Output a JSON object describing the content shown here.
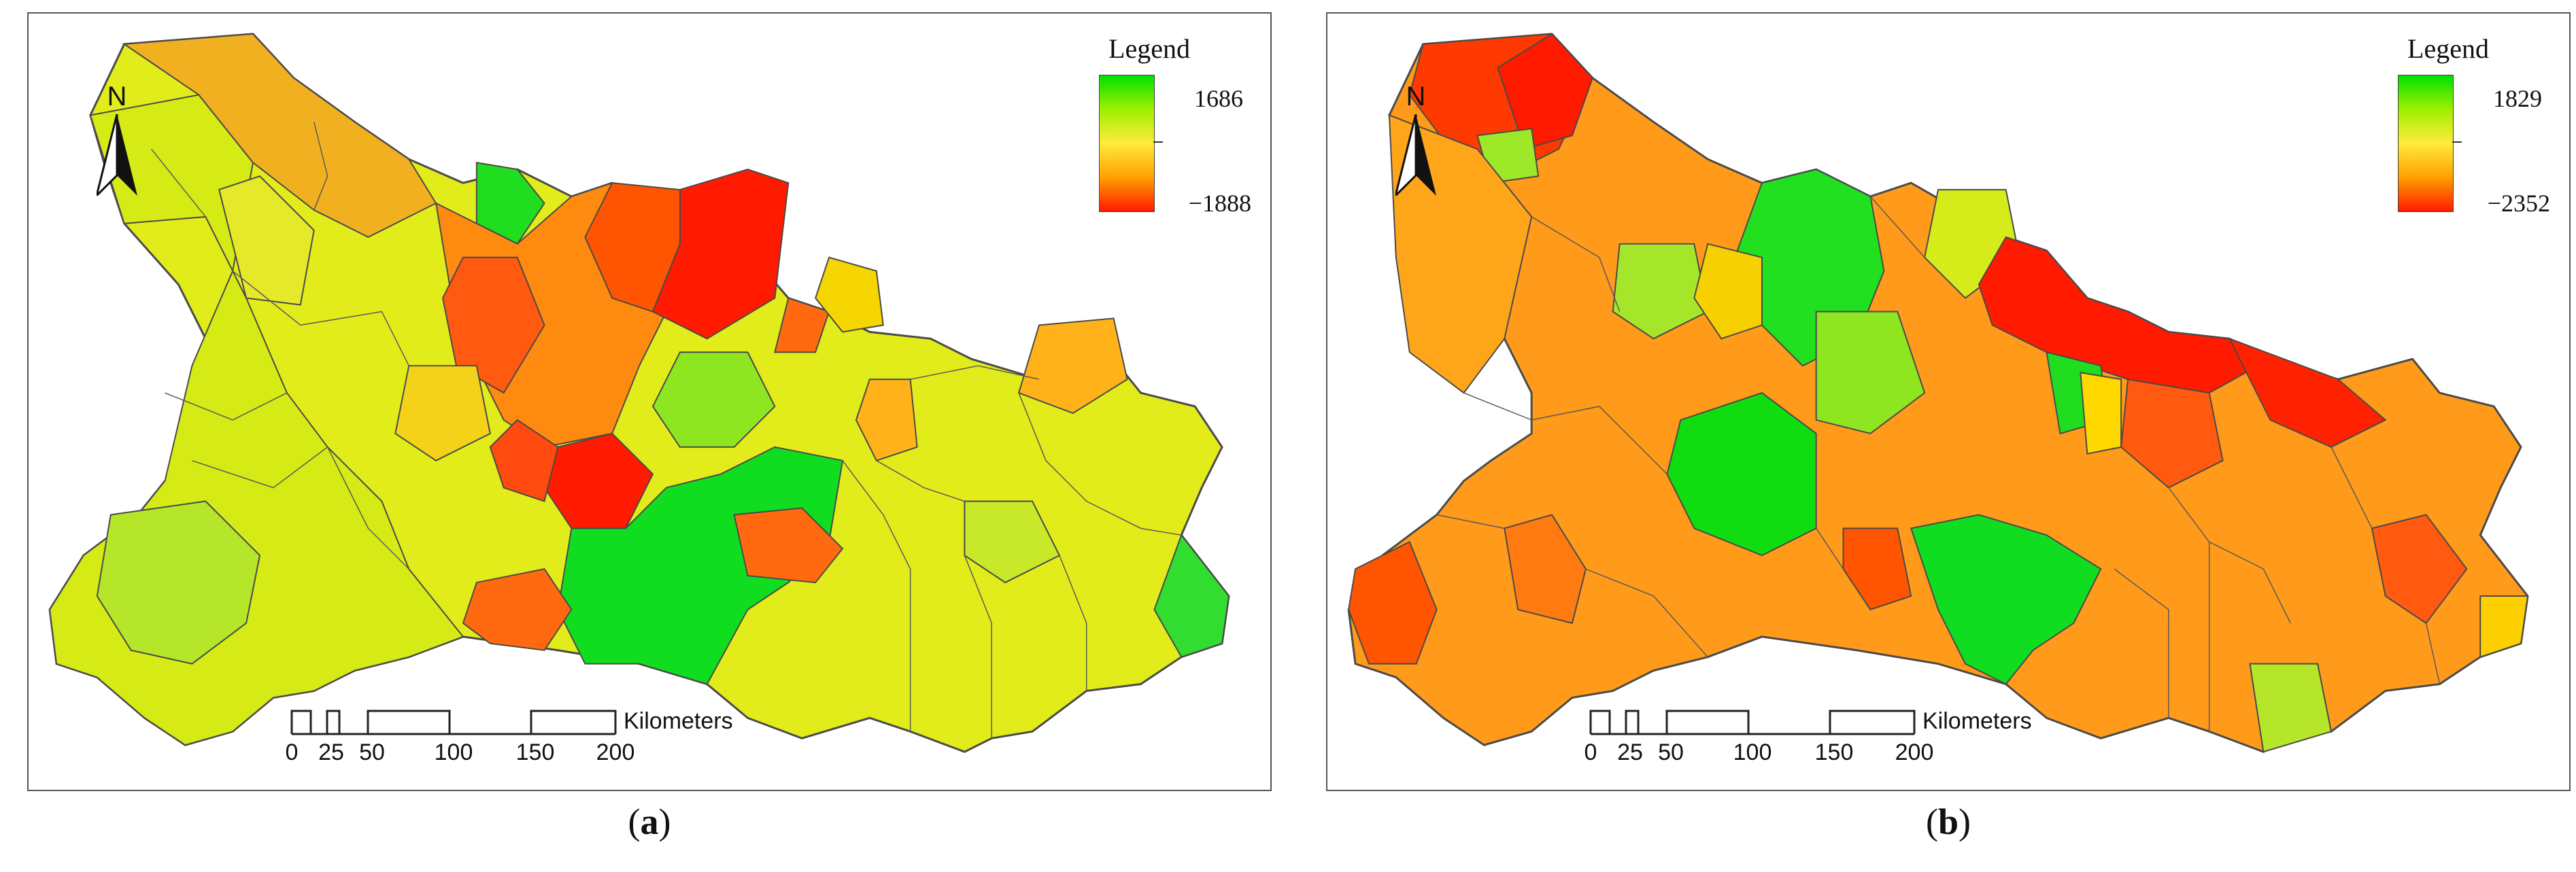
{
  "panels": [
    {
      "id": "a",
      "caption_letter": "a",
      "legend": {
        "title": "Legend",
        "max": "1686",
        "min": "−1888"
      },
      "north_label": "N",
      "scalebar": {
        "unit": "Kilometers",
        "ticks": [
          "0",
          "25",
          "50",
          "100",
          "150",
          "200"
        ]
      }
    },
    {
      "id": "b",
      "caption_letter": "b",
      "legend": {
        "title": "Legend",
        "max": "1829",
        "min": "−2352"
      },
      "north_label": "N",
      "scalebar": {
        "unit": "Kilometers",
        "ticks": [
          "0",
          "25",
          "50",
          "100",
          "150",
          "200"
        ]
      }
    }
  ],
  "colors": {
    "high": "#00e000",
    "mid_high": "#9ef000",
    "mid": "#e8ec00",
    "mid_low": "#ffb000",
    "low": "#ff1a00",
    "boundary": "#4a4a4a"
  }
}
